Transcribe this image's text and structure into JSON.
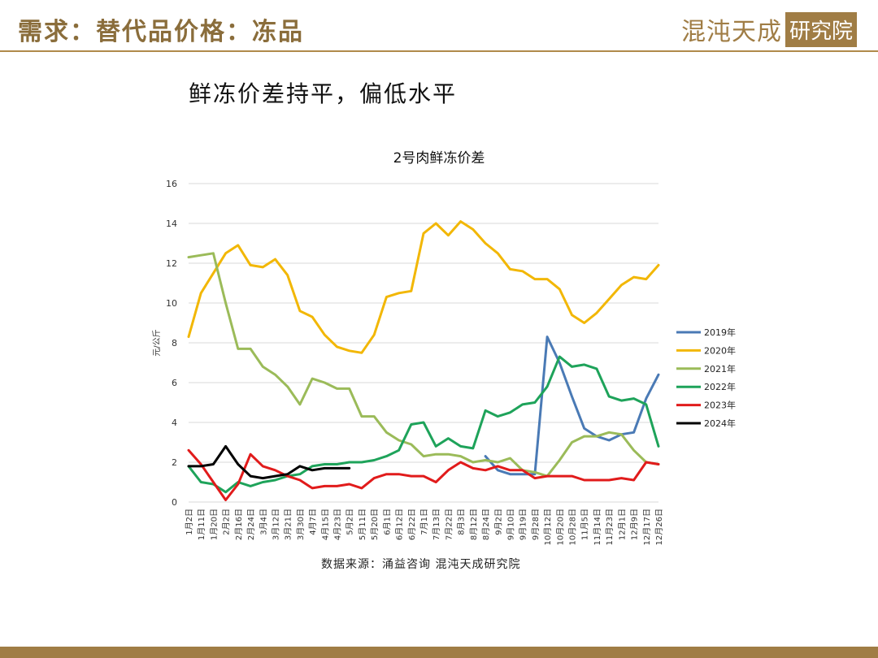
{
  "header": {
    "title": "需求：替代品价格：冻品",
    "brand_main": "混沌天成",
    "brand_box": "研究院"
  },
  "subtitle": "鲜冻价差持平，偏低水平",
  "source": "数据来源：涌益咨询  混沌天成研究院",
  "colors": {
    "accent": "#a07d45"
  },
  "chart_data": {
    "type": "line",
    "title": "2号肉鲜冻价差",
    "ylabel": "元/公斤",
    "xlabel": "",
    "ylim": [
      0,
      16
    ],
    "yticks": [
      0,
      2,
      4,
      6,
      8,
      10,
      12,
      14,
      16
    ],
    "grid": true,
    "legend_position": "right",
    "categories": [
      "1月2日",
      "1月11日",
      "1月20日",
      "2月2日",
      "2月16日",
      "2月24日",
      "3月4日",
      "3月12日",
      "3月21日",
      "3月30日",
      "4月7日",
      "4月15日",
      "4月23日",
      "5月2日",
      "5月11日",
      "5月20日",
      "6月1日",
      "6月12日",
      "6月22日",
      "7月1日",
      "7月13日",
      "7月22日",
      "8月3日",
      "8月12日",
      "8月24日",
      "9月2日",
      "9月10日",
      "9月19日",
      "9月28日",
      "10月12日",
      "10月20日",
      "10月28日",
      "11月5日",
      "11月14日",
      "11月23日",
      "12月1日",
      "12月9日",
      "12月17日",
      "12月26日"
    ],
    "series": [
      {
        "name": "2019年",
        "color": "#4a7ab5",
        "x": [
          24,
          25,
          26,
          27,
          28,
          29,
          30,
          31,
          32,
          33,
          34,
          35,
          36,
          37,
          38
        ],
        "values": [
          2.3,
          1.6,
          1.4,
          1.4,
          1.4,
          8.3,
          7.0,
          5.3,
          3.7,
          3.3,
          3.1,
          3.4,
          3.5,
          5.2,
          6.4
        ]
      },
      {
        "name": "2020年",
        "color": "#f2b705",
        "x": [
          0,
          1,
          2,
          3,
          4,
          5,
          6,
          7,
          8,
          9,
          10,
          11,
          12,
          13,
          14,
          15,
          16,
          17,
          18,
          19,
          20,
          21,
          22,
          23,
          24,
          25,
          26,
          27,
          28,
          29,
          30,
          31,
          32,
          33,
          34,
          35,
          36,
          37,
          38
        ],
        "values": [
          8.3,
          10.5,
          11.5,
          12.5,
          12.9,
          11.9,
          11.8,
          12.2,
          11.4,
          9.6,
          9.3,
          8.4,
          7.8,
          7.6,
          7.5,
          8.4,
          10.3,
          10.5,
          10.6,
          13.5,
          14.0,
          13.4,
          14.1,
          13.7,
          13.0,
          12.5,
          11.7,
          11.6,
          11.2,
          11.2,
          10.7,
          9.4,
          9.0,
          9.5,
          10.2,
          10.9,
          11.3,
          11.2,
          11.9
        ]
      },
      {
        "name": "2021年",
        "color": "#9bbb59",
        "x": [
          0,
          1,
          2,
          3,
          4,
          5,
          6,
          7,
          8,
          9,
          10,
          11,
          12,
          13,
          14,
          15,
          16,
          17,
          18,
          19,
          20,
          21,
          22,
          23,
          24,
          25,
          26,
          27,
          28,
          29,
          30,
          31,
          32,
          33,
          34,
          35,
          36,
          37,
          38
        ],
        "values": [
          12.3,
          12.4,
          12.5,
          10.0,
          7.7,
          7.7,
          6.8,
          6.4,
          5.8,
          4.9,
          6.2,
          6.0,
          5.7,
          5.7,
          4.3,
          4.3,
          3.5,
          3.1,
          2.9,
          2.3,
          2.4,
          2.4,
          2.3,
          2.0,
          2.1,
          2.0,
          2.2,
          1.6,
          1.5,
          1.3,
          2.1,
          3.0,
          3.3,
          3.3,
          3.5,
          3.4,
          2.6,
          2.0,
          1.9
        ]
      },
      {
        "name": "2022年",
        "color": "#1ea35a",
        "x": [
          0,
          1,
          2,
          3,
          4,
          5,
          6,
          7,
          8,
          9,
          10,
          11,
          12,
          13,
          14,
          15,
          16,
          17,
          18,
          19,
          20,
          21,
          22,
          23,
          24,
          25,
          26,
          27,
          28,
          29,
          30,
          31,
          32,
          33,
          34,
          35,
          36,
          37,
          38
        ],
        "values": [
          1.8,
          1.0,
          0.9,
          0.5,
          1.0,
          0.8,
          1.0,
          1.1,
          1.3,
          1.4,
          1.8,
          1.9,
          1.9,
          2.0,
          2.0,
          2.1,
          2.3,
          2.6,
          3.9,
          4.0,
          2.8,
          3.2,
          2.8,
          2.7,
          4.6,
          4.3,
          4.5,
          4.9,
          5.0,
          5.8,
          7.3,
          6.8,
          6.9,
          6.7,
          5.3,
          5.1,
          5.2,
          4.9,
          2.8
        ]
      },
      {
        "name": "2023年",
        "color": "#e11b1b",
        "x": [
          0,
          1,
          2,
          3,
          4,
          5,
          6,
          7,
          8,
          9,
          10,
          11,
          12,
          13,
          14,
          15,
          16,
          17,
          18,
          19,
          20,
          21,
          22,
          23,
          24,
          25,
          26,
          27,
          28,
          29,
          30,
          31,
          32,
          33,
          34,
          35,
          36,
          37,
          38
        ],
        "values": [
          2.6,
          1.9,
          1.0,
          0.1,
          0.9,
          2.4,
          1.8,
          1.6,
          1.3,
          1.1,
          0.7,
          0.8,
          0.8,
          0.9,
          0.7,
          1.2,
          1.4,
          1.4,
          1.3,
          1.3,
          1.0,
          1.6,
          2.0,
          1.7,
          1.6,
          1.8,
          1.6,
          1.6,
          1.2,
          1.3,
          1.3,
          1.3,
          1.1,
          1.1,
          1.1,
          1.2,
          1.1,
          2.0,
          1.9
        ]
      },
      {
        "name": "2024年",
        "color": "#000000",
        "x": [
          0,
          1,
          2,
          3,
          4,
          5,
          6,
          7,
          8,
          9,
          10,
          11,
          12,
          13
        ],
        "values": [
          1.8,
          1.8,
          1.9,
          2.8,
          1.9,
          1.3,
          1.2,
          1.3,
          1.4,
          1.8,
          1.6,
          1.7,
          1.7,
          1.7
        ]
      }
    ]
  }
}
